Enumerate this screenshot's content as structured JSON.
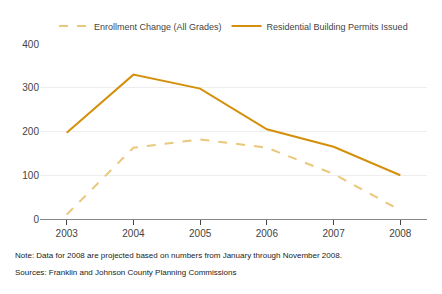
{
  "chart_data": {
    "type": "line",
    "x": [
      2003,
      2004,
      2005,
      2006,
      2007,
      2008
    ],
    "series": [
      {
        "name": "Enrollment Change (All Grades)",
        "color": "#E8C87A",
        "line_style": "dashed",
        "values": [
          10,
          163,
          182,
          163,
          103,
          20
        ]
      },
      {
        "name": "Residential Building Permits Issued",
        "color": "#D4900A",
        "line_style": "solid",
        "values": [
          197,
          330,
          298,
          205,
          165,
          100
        ]
      }
    ],
    "xlim": [
      2002.6,
      2008.4
    ],
    "xticks": [
      2003,
      2004,
      2005,
      2006,
      2007,
      2008
    ],
    "ylim": [
      0,
      400
    ],
    "yticks": [
      0,
      100,
      200,
      300,
      400
    ],
    "grid": true,
    "legend": "top",
    "annotations": [
      "Note: Data for 2008 are projected based on numbers from January through November 2008.",
      "Sources: Franklin and Johnson County Planning Commissions"
    ]
  }
}
